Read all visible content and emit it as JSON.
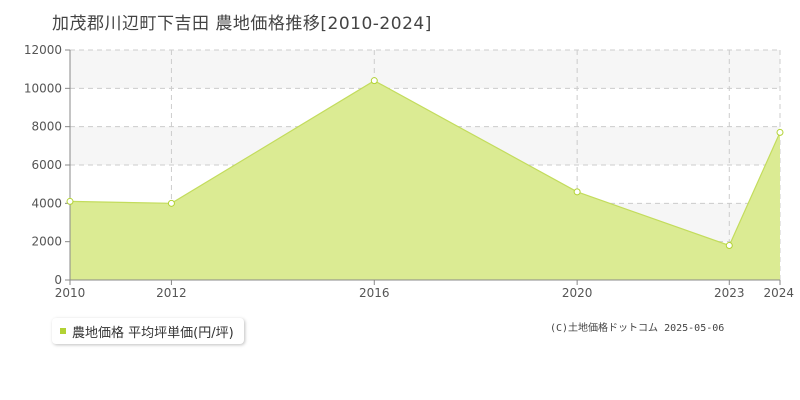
{
  "title": "加茂郡川辺町下吉田 農地価格推移[2010-2024]",
  "legend_label": "農地価格 平均坪単価(円/坪)",
  "credit": "(C)土地価格ドットコム 2025-05-06",
  "colors": {
    "fill": "#dbeb93",
    "line": "#c3dc5d",
    "marker": "#b2d234",
    "band": "#f6f6f6"
  },
  "chart_data": {
    "type": "area",
    "x": [
      2010,
      2012,
      2016,
      2020,
      2023,
      2024
    ],
    "x_tick_labels": [
      "2010",
      "2012",
      "2016",
      "2020",
      "2023",
      "2024"
    ],
    "series": [
      {
        "name": "農地価格 平均坪単価(円/坪)",
        "values": [
          4100,
          4000,
          10400,
          4600,
          1800,
          7700
        ]
      }
    ],
    "ylim": [
      0,
      12000
    ],
    "y_ticks": [
      0,
      2000,
      4000,
      6000,
      8000,
      10000,
      12000
    ],
    "grid": true,
    "legend": "bottom-left"
  }
}
